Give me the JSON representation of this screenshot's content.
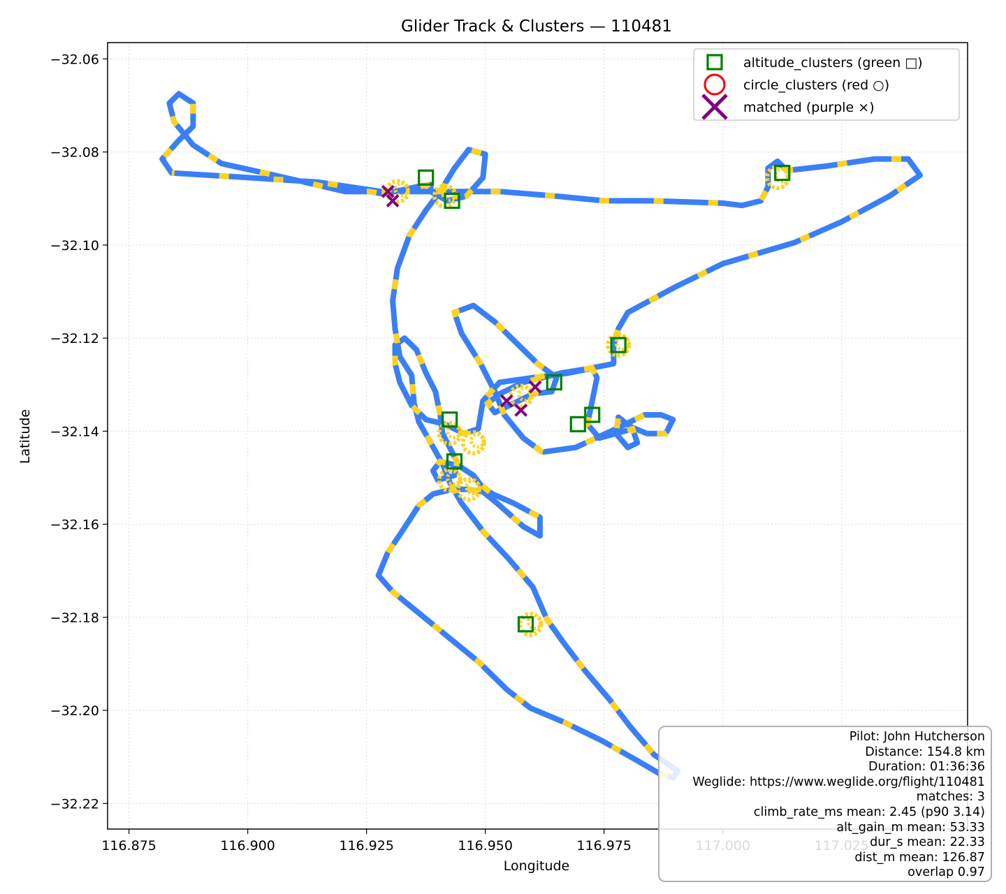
{
  "chart_data": {
    "type": "scatter",
    "title": "Glider Track & Clusters — 110481",
    "xlabel": "Longitude",
    "ylabel": "Latitude",
    "xlim": [
      116.8705,
      117.0515
    ],
    "ylim": [
      -32.2255,
      -32.0565
    ],
    "x_ticks": [
      116.875,
      116.9,
      116.925,
      116.95,
      116.975,
      117.0,
      117.025
    ],
    "x_tick_labels": [
      "116.875",
      "116.900",
      "116.925",
      "116.950",
      "116.975",
      "117.000",
      "117.025"
    ],
    "y_ticks": [
      -32.06,
      -32.08,
      -32.1,
      -32.12,
      -32.14,
      -32.16,
      -32.18,
      -32.2,
      -32.22
    ],
    "y_tick_labels": [
      "−32.06",
      "−32.08",
      "−32.10",
      "−32.12",
      "−32.14",
      "−32.16",
      "−32.18",
      "−32.20",
      "−32.22"
    ],
    "grid": true,
    "legend_position": "top-right",
    "track": {
      "colors": {
        "cruise": "#3a7ff6",
        "climb": "#ffd21f"
      },
      "points": [
        [
          116.884,
          -32.0845
        ],
        [
          116.9,
          -32.0855
        ],
        [
          116.915,
          -32.0865
        ],
        [
          116.928,
          -32.0885
        ],
        [
          116.94,
          -32.0885
        ],
        [
          116.953,
          -32.0885
        ],
        [
          116.965,
          -32.0895
        ],
        [
          116.975,
          -32.0905
        ],
        [
          116.985,
          -32.0905
        ],
        [
          117.0,
          -32.091
        ],
        [
          117.004,
          -32.0915
        ],
        [
          117.008,
          -32.0905
        ],
        [
          117.0095,
          -32.0875
        ],
        [
          117.0095,
          -32.0835
        ],
        [
          117.0115,
          -32.082
        ],
        [
          117.0135,
          -32.084
        ],
        [
          117.022,
          -32.083
        ],
        [
          117.032,
          -32.0815
        ],
        [
          117.039,
          -32.0815
        ],
        [
          117.0415,
          -32.085
        ],
        [
          117.035,
          -32.0895
        ],
        [
          117.025,
          -32.095
        ],
        [
          117.015,
          -32.0995
        ],
        [
          117.0,
          -32.104
        ],
        [
          116.99,
          -32.109
        ],
        [
          116.98,
          -32.1145
        ],
        [
          116.978,
          -32.118
        ],
        [
          116.977,
          -32.1215
        ],
        [
          116.977,
          -32.1255
        ],
        [
          116.972,
          -32.1265
        ],
        [
          116.966,
          -32.1275
        ],
        [
          116.958,
          -32.1295
        ],
        [
          116.953,
          -32.132
        ],
        [
          116.9505,
          -32.134
        ],
        [
          116.952,
          -32.136
        ],
        [
          116.955,
          -32.1345
        ],
        [
          116.96,
          -32.132
        ],
        [
          116.964,
          -32.1315
        ],
        [
          116.965,
          -32.1285
        ],
        [
          116.961,
          -32.1255
        ],
        [
          116.956,
          -32.1205
        ],
        [
          116.952,
          -32.1165
        ],
        [
          116.9475,
          -32.113
        ],
        [
          116.9435,
          -32.1145
        ],
        [
          116.945,
          -32.119
        ],
        [
          116.949,
          -32.1255
        ],
        [
          116.952,
          -32.1315
        ],
        [
          116.954,
          -32.1365
        ],
        [
          116.958,
          -32.1415
        ],
        [
          116.962,
          -32.1445
        ],
        [
          116.969,
          -32.1435
        ],
        [
          116.9775,
          -32.1395
        ],
        [
          116.9835,
          -32.1365
        ],
        [
          116.987,
          -32.1365
        ],
        [
          116.9895,
          -32.1375
        ],
        [
          116.988,
          -32.1405
        ],
        [
          116.984,
          -32.1405
        ],
        [
          116.9805,
          -32.139
        ],
        [
          116.978,
          -32.137
        ],
        [
          116.9775,
          -32.1405
        ],
        [
          116.98,
          -32.1435
        ],
        [
          116.982,
          -32.1425
        ],
        [
          116.981,
          -32.1395
        ],
        [
          116.974,
          -32.1415
        ],
        [
          116.9715,
          -32.1385
        ],
        [
          116.9725,
          -32.1335
        ],
        [
          116.9735,
          -32.1285
        ],
        [
          116.9725,
          -32.1265
        ],
        [
          116.9675,
          -32.1275
        ],
        [
          116.96,
          -32.1285
        ],
        [
          116.953,
          -32.1295
        ],
        [
          116.9495,
          -32.1335
        ],
        [
          116.9485,
          -32.1395
        ],
        [
          116.9455,
          -32.1405
        ],
        [
          116.9415,
          -32.1385
        ],
        [
          116.9375,
          -32.1375
        ],
        [
          116.9345,
          -32.1345
        ],
        [
          116.932,
          -32.1295
        ],
        [
          116.931,
          -32.1255
        ],
        [
          116.931,
          -32.1215
        ],
        [
          116.933,
          -32.12
        ],
        [
          116.9355,
          -32.1225
        ],
        [
          116.9375,
          -32.1275
        ],
        [
          116.9395,
          -32.1315
        ],
        [
          116.9405,
          -32.1365
        ],
        [
          116.941,
          -32.1405
        ],
        [
          116.9425,
          -32.1435
        ],
        [
          116.944,
          -32.1465
        ],
        [
          116.9435,
          -32.1495
        ],
        [
          116.94,
          -32.1505
        ],
        [
          116.939,
          -32.1485
        ],
        [
          116.9405,
          -32.1465
        ],
        [
          116.9445,
          -32.1475
        ],
        [
          116.9475,
          -32.1495
        ],
        [
          116.949,
          -32.1515
        ],
        [
          116.9515,
          -32.1535
        ],
        [
          116.956,
          -32.1555
        ],
        [
          116.9615,
          -32.1585
        ],
        [
          116.9615,
          -32.1625
        ],
        [
          116.958,
          -32.1605
        ],
        [
          116.9525,
          -32.1555
        ],
        [
          116.9495,
          -32.153
        ],
        [
          116.9465,
          -32.1525
        ],
        [
          116.943,
          -32.1525
        ],
        [
          116.939,
          -32.1535
        ],
        [
          116.936,
          -32.156
        ],
        [
          116.9325,
          -32.1615
        ],
        [
          116.9295,
          -32.166
        ],
        [
          116.9275,
          -32.171
        ],
        [
          116.9305,
          -32.1745
        ],
        [
          116.9365,
          -32.1795
        ],
        [
          116.9425,
          -32.1845
        ],
        [
          116.9485,
          -32.1895
        ],
        [
          116.9545,
          -32.1955
        ],
        [
          116.9595,
          -32.1995
        ],
        [
          116.9665,
          -32.2025
        ],
        [
          116.9745,
          -32.2065
        ],
        [
          116.9815,
          -32.2105
        ],
        [
          116.9865,
          -32.2135
        ],
        [
          116.9895,
          -32.2145
        ],
        [
          116.9905,
          -32.213
        ],
        [
          116.9855,
          -32.2095
        ],
        [
          116.9805,
          -32.2035
        ],
        [
          116.976,
          -32.1975
        ],
        [
          116.971,
          -32.1915
        ],
        [
          116.9665,
          -32.1855
        ],
        [
          116.963,
          -32.1805
        ],
        [
          116.96,
          -32.1735
        ],
        [
          116.955,
          -32.1675
        ],
        [
          116.9495,
          -32.1615
        ],
        [
          116.945,
          -32.1555
        ],
        [
          116.9425,
          -32.151
        ],
        [
          116.941,
          -32.147
        ],
        [
          116.9385,
          -32.1425
        ],
        [
          116.936,
          -32.138
        ],
        [
          116.935,
          -32.134
        ],
        [
          116.9345,
          -32.128
        ],
        [
          116.932,
          -32.124
        ],
        [
          116.931,
          -32.118
        ],
        [
          116.9305,
          -32.112
        ],
        [
          116.9315,
          -32.105
        ],
        [
          116.934,
          -32.098
        ],
        [
          116.9375,
          -32.0925
        ],
        [
          116.9405,
          -32.0885
        ],
        [
          116.9435,
          -32.0835
        ],
        [
          116.9465,
          -32.0795
        ],
        [
          116.95,
          -32.0805
        ],
        [
          116.9495,
          -32.0855
        ],
        [
          116.946,
          -32.0895
        ],
        [
          116.942,
          -32.0905
        ],
        [
          116.9385,
          -32.0885
        ],
        [
          116.9385,
          -32.087
        ],
        [
          116.9355,
          -32.0875
        ],
        [
          116.931,
          -32.0885
        ],
        [
          116.9285,
          -32.089
        ],
        [
          116.9255,
          -32.0885
        ],
        [
          116.9205,
          -32.0885
        ],
        [
          116.912,
          -32.0865
        ],
        [
          116.9035,
          -32.0845
        ],
        [
          116.8945,
          -32.0825
        ],
        [
          116.8885,
          -32.0785
        ],
        [
          116.8845,
          -32.0735
        ],
        [
          116.8835,
          -32.0695
        ],
        [
          116.8855,
          -32.0675
        ],
        [
          116.8885,
          -32.0695
        ],
        [
          116.8885,
          -32.0745
        ],
        [
          116.8855,
          -32.0775
        ],
        [
          116.882,
          -32.0815
        ],
        [
          116.884,
          -32.0845
        ]
      ]
    },
    "series": [
      {
        "name": "altitude_clusters (green □)",
        "marker": "square",
        "color": "#008000",
        "points": [
          [
            116.9375,
            -32.0855
          ],
          [
            116.943,
            -32.0905
          ],
          [
            117.0125,
            -32.0845
          ],
          [
            116.978,
            -32.1215
          ],
          [
            116.9645,
            -32.1295
          ],
          [
            116.9725,
            -32.1365
          ],
          [
            116.9695,
            -32.1385
          ],
          [
            116.9425,
            -32.1375
          ],
          [
            116.9435,
            -32.1465
          ],
          [
            116.9585,
            -32.1815
          ]
        ]
      },
      {
        "name": "circle_clusters (red ○)",
        "marker": "circle",
        "color": "#ee1111",
        "points": []
      },
      {
        "name": "matched (purple ×)",
        "marker": "x",
        "color": "#800080",
        "points": [
          [
            116.9295,
            -32.0885
          ],
          [
            116.9305,
            -32.0905
          ],
          [
            116.9545,
            -32.1335
          ],
          [
            116.9605,
            -32.1305
          ],
          [
            116.9575,
            -32.1355
          ]
        ]
      }
    ],
    "climb_thermals": [
      [
        116.9315,
        -32.0885
      ],
      [
        116.9415,
        -32.0895
      ],
      [
        117.0115,
        -32.0855
      ],
      [
        116.978,
        -32.1215
      ],
      [
        116.9575,
        -32.1325
      ],
      [
        116.9425,
        -32.1405
      ],
      [
        116.9475,
        -32.1425
      ],
      [
        116.9425,
        -32.1505
      ],
      [
        116.9465,
        -32.1525
      ],
      [
        116.9595,
        -32.1815
      ]
    ],
    "info_box": {
      "lines": [
        "Pilot: John Hutcherson",
        "Distance: 154.8 km",
        "Duration: 01:36:36",
        "Weglide: https://www.weglide.org/flight/110481",
        "matches: 3",
        "climb_rate_ms mean: 2.45 (p90 3.14)",
        "alt_gain_m mean: 53.33",
        "dur_s mean: 22.33",
        "dist_m mean: 126.87",
        "overlap 0.97"
      ]
    }
  }
}
